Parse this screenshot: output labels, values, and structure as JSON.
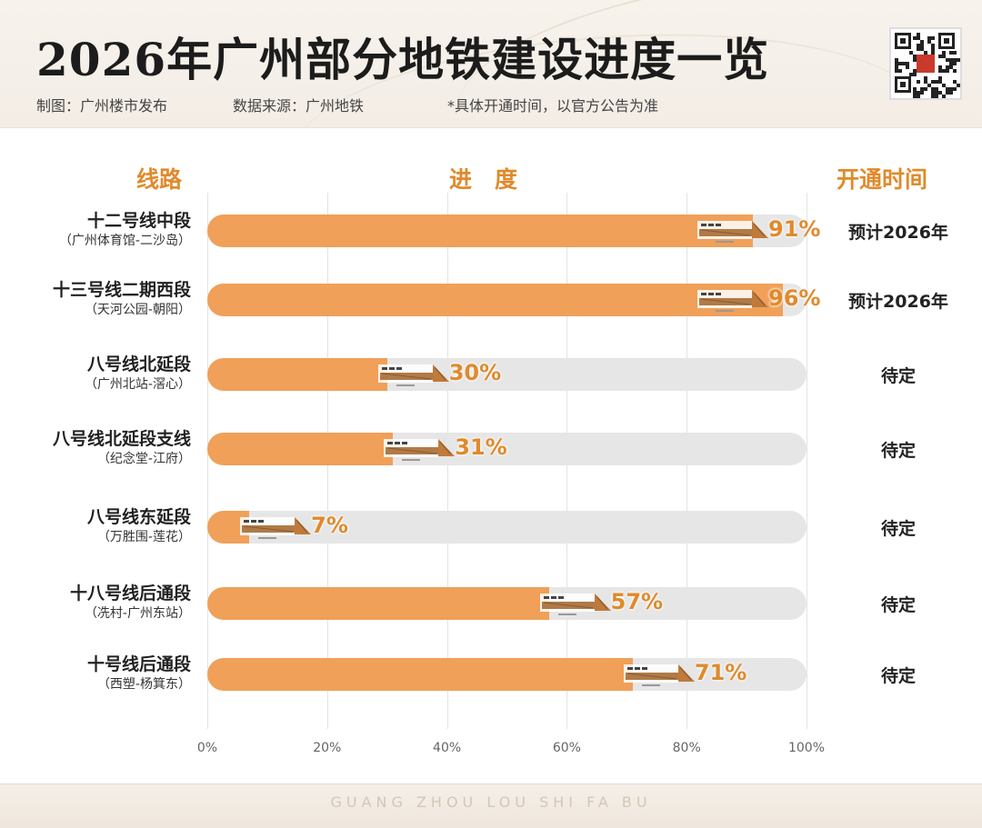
{
  "header": {
    "title": "2026年广州部分地铁建设进度一览",
    "maker": "制图：广州楼市发布",
    "source": "数据来源：广州地铁",
    "note": "*具体开通时间，以官方公告为准"
  },
  "columns": {
    "line": "线路",
    "progress": "进　度",
    "open": "开通时间"
  },
  "colors": {
    "accent": "#e08a2c",
    "bar_fill": "#f0a058",
    "track": "#e6e6e6"
  },
  "chart_data": {
    "type": "bar",
    "orientation": "horizontal",
    "categories": [
      "十二号线中段",
      "十三号线二期西段",
      "八号线北延段",
      "八号线北延段支线",
      "八号线东延段",
      "十八号线后通段",
      "十号线后通段"
    ],
    "subtitles": [
      "（广州体育馆-二沙岛）",
      "（天河公园-朝阳）",
      "（广州北站-滘心）",
      "（纪念堂-江府）",
      "（万胜围-莲花）",
      "（冼村-广州东站）",
      "（西塑-杨箕东）"
    ],
    "values": [
      91,
      96,
      30,
      31,
      7,
      57,
      71
    ],
    "value_labels": [
      "91%",
      "96%",
      "30%",
      "31%",
      "7%",
      "57%",
      "71%"
    ],
    "open_times": [
      "预计2026年",
      "预计2026年",
      "待定",
      "待定",
      "待定",
      "待定",
      "待定"
    ],
    "xlim": [
      0,
      100
    ],
    "x_ticks": [
      "0%",
      "20%",
      "40%",
      "60%",
      "80%",
      "100%"
    ],
    "grid": true
  },
  "footer": {
    "text": "GUANG ZHOU LOU SHI FA BU"
  }
}
